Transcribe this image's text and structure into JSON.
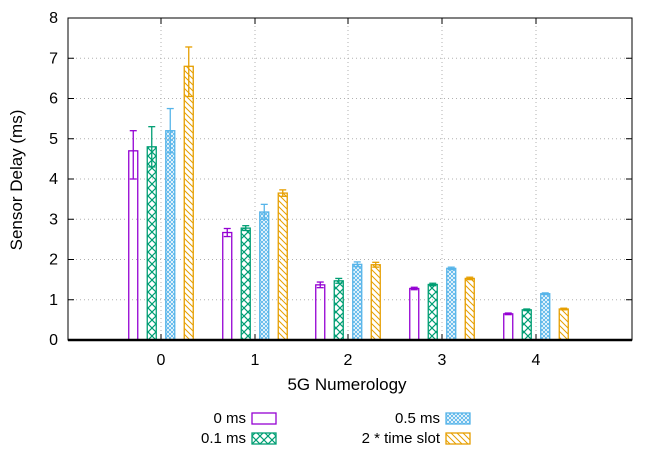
{
  "chart_data": {
    "type": "bar",
    "xlabel": "5G Numerology",
    "ylabel": "Sensor Delay (ms)",
    "categories": [
      "0",
      "1",
      "2",
      "3",
      "4"
    ],
    "ylim": [
      0,
      8
    ],
    "yticks": [
      "0",
      "1",
      "2",
      "3",
      "4",
      "5",
      "6",
      "7",
      "8"
    ],
    "grid": true,
    "legend_position": "bottom",
    "series": [
      {
        "name": "0 ms",
        "color": "#9400d3",
        "pattern": "empty",
        "values": [
          4.7,
          2.67,
          1.37,
          1.28,
          0.65
        ],
        "err_low": [
          4.0,
          2.57,
          1.3,
          1.25,
          0.63
        ],
        "err_high": [
          5.2,
          2.77,
          1.44,
          1.31,
          0.67
        ]
      },
      {
        "name": "0.1 ms",
        "color": "#009e73",
        "pattern": "crosshatch",
        "values": [
          4.8,
          2.78,
          1.47,
          1.38,
          0.75
        ],
        "err_low": [
          4.3,
          2.72,
          1.41,
          1.35,
          0.73
        ],
        "err_high": [
          5.3,
          2.84,
          1.53,
          1.41,
          0.77
        ]
      },
      {
        "name": "0.5 ms",
        "color": "#56b4e9",
        "pattern": "finecross",
        "values": [
          5.2,
          3.18,
          1.88,
          1.78,
          1.15
        ],
        "err_low": [
          4.65,
          3.0,
          1.82,
          1.75,
          1.13
        ],
        "err_high": [
          5.75,
          3.37,
          1.94,
          1.81,
          1.17
        ]
      },
      {
        "name": "2 * time slot",
        "color": "#e69f00",
        "pattern": "diagonal",
        "values": [
          6.8,
          3.65,
          1.87,
          1.53,
          0.77
        ],
        "err_low": [
          6.05,
          3.57,
          1.81,
          1.5,
          0.75
        ],
        "err_high": [
          7.28,
          3.73,
          1.93,
          1.56,
          0.79
        ]
      }
    ]
  }
}
